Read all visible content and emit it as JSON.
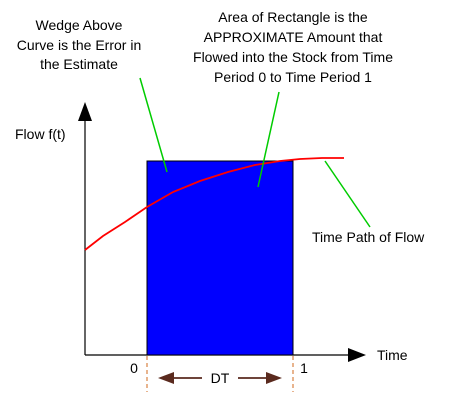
{
  "annotations": {
    "wedge": [
      "Wedge Above",
      "Curve is the Error in",
      "the Estimate"
    ],
    "rectangle": [
      "Area of Rectangle is the",
      "APPROXIMATE Amount that",
      "Flowed into the Stock from Time",
      "Period 0 to Time Period 1"
    ],
    "time_path": "Time Path of Flow"
  },
  "axes": {
    "y_label": "Flow f(t)",
    "x_label": "Time",
    "tick_start": "0",
    "tick_end": "1",
    "interval": "DT"
  },
  "colors": {
    "rectangle": "#0000ff",
    "curve": "#ff0000",
    "pointer": "#00cc00",
    "dt_marker": "#d2691e",
    "dt_arrow": "#5a2a1e",
    "axis": "#000000"
  }
}
